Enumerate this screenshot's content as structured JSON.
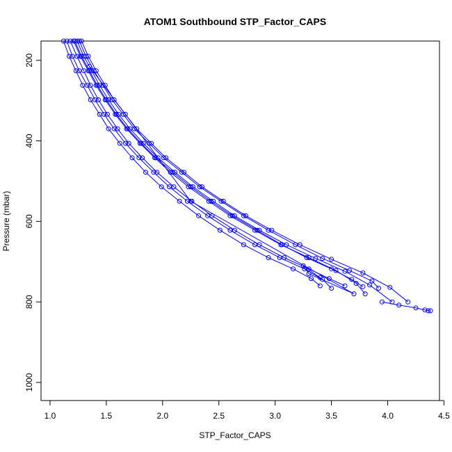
{
  "chart_data": {
    "type": "scatter",
    "title": "ATOM1 Southbound STP_Factor_CAPS",
    "xlabel": "STP_Factor_CAPS",
    "ylabel": "Pressure (mbar)",
    "xlim": [
      0.92,
      4.46
    ],
    "ylim": [
      1045,
      152
    ],
    "y_reversed": true,
    "grid": false,
    "legend": "none",
    "x_ticks": [
      "1.0",
      "1.5",
      "2.0",
      "2.5",
      "3.0",
      "3.5",
      "4.0",
      "4.5"
    ],
    "y_ticks": [
      "200",
      "400",
      "600",
      "800",
      "1000"
    ],
    "series_color": "#0000ff",
    "marker": "open-circle",
    "series": [
      {
        "x": [
          1.18,
          1.24,
          1.3,
          1.36,
          1.43,
          1.51,
          1.6,
          1.7,
          1.82,
          1.95,
          2.1,
          2.26,
          2.44,
          2.64,
          2.86,
          3.08,
          3.3,
          3.48,
          3.62
        ],
        "y": [
          152,
          190,
          226,
          262,
          298,
          334,
          370,
          406,
          442,
          478,
          514,
          550,
          586,
          622,
          658,
          690,
          718,
          742,
          760
        ]
      },
      {
        "x": [
          1.22,
          1.28,
          1.35,
          1.42,
          1.5,
          1.59,
          1.69,
          1.81,
          1.94,
          2.09,
          2.25,
          2.43,
          2.62,
          2.84,
          3.06,
          3.28,
          3.5,
          3.68,
          3.78
        ],
        "y": [
          152,
          190,
          226,
          262,
          298,
          334,
          370,
          406,
          442,
          478,
          514,
          550,
          586,
          622,
          658,
          690,
          718,
          744,
          762
        ]
      },
      {
        "x": [
          1.26,
          1.32,
          1.39,
          1.47,
          1.55,
          1.65,
          1.75,
          1.88,
          2.01,
          2.17,
          2.33,
          2.52,
          2.72,
          2.94,
          3.18,
          3.42,
          3.66,
          3.86,
          3.92
        ],
        "y": [
          152,
          190,
          226,
          262,
          298,
          334,
          370,
          406,
          442,
          478,
          514,
          550,
          586,
          622,
          658,
          692,
          722,
          748,
          766
        ]
      },
      {
        "x": [
          1.12,
          1.17,
          1.23,
          1.29,
          1.36,
          1.44,
          1.52,
          1.62,
          1.73,
          1.85,
          1.99,
          2.15,
          2.32,
          2.51,
          2.72,
          2.94,
          3.16,
          3.32,
          3.4
        ],
        "y": [
          152,
          190,
          226,
          262,
          298,
          334,
          370,
          406,
          442,
          478,
          514,
          550,
          586,
          622,
          658,
          690,
          718,
          742,
          760
        ]
      },
      {
        "x": [
          1.15,
          1.2,
          1.26,
          1.33,
          1.4,
          1.48,
          1.57,
          1.67,
          1.79,
          1.92,
          2.06,
          2.22,
          2.4,
          2.6,
          2.82,
          3.04,
          3.26,
          3.42,
          3.5
        ],
        "y": [
          152,
          190,
          226,
          262,
          298,
          334,
          370,
          406,
          442,
          478,
          514,
          550,
          586,
          622,
          658,
          690,
          718,
          744,
          766
        ]
      },
      {
        "x": [
          1.24,
          1.3,
          1.37,
          1.44,
          1.52,
          1.61,
          1.71,
          1.83,
          1.96,
          2.11,
          2.27,
          2.45,
          2.64,
          2.86,
          3.1,
          3.36,
          3.62,
          3.84,
          4.04
        ],
        "y": [
          152,
          190,
          226,
          262,
          298,
          334,
          370,
          406,
          442,
          478,
          514,
          550,
          586,
          622,
          658,
          692,
          724,
          758,
          800
        ]
      },
      {
        "x": [
          1.28,
          1.34,
          1.41,
          1.49,
          1.57,
          1.67,
          1.77,
          1.9,
          2.03,
          2.19,
          2.35,
          2.54,
          2.74,
          2.97,
          3.22,
          3.5,
          3.78,
          4.02,
          4.18
        ],
        "y": [
          152,
          190,
          226,
          262,
          298,
          334,
          370,
          406,
          442,
          478,
          514,
          550,
          586,
          622,
          658,
          694,
          728,
          764,
          800
        ]
      },
      {
        "x": [
          1.21,
          1.27,
          1.34,
          1.41,
          1.49,
          1.58,
          1.68,
          1.8,
          1.93,
          2.07,
          2.23,
          2.41,
          2.6,
          2.82,
          3.05,
          3.3,
          3.54,
          3.72,
          3.8
        ],
        "y": [
          152,
          190,
          226,
          262,
          298,
          334,
          370,
          406,
          442,
          478,
          514,
          550,
          586,
          622,
          658,
          690,
          722,
          754,
          780
        ]
      },
      {
        "x": [
          1.35,
          2.25,
          3.7,
          3.3,
          3.25,
          3.4
        ],
        "y": [
          215,
          550,
          780,
          730,
          710,
          740
        ]
      },
      {
        "x": [
          3.95,
          4.1,
          4.25,
          4.33,
          4.36,
          4.38
        ],
        "y": [
          800,
          808,
          815,
          820,
          822,
          822
        ]
      }
    ]
  }
}
